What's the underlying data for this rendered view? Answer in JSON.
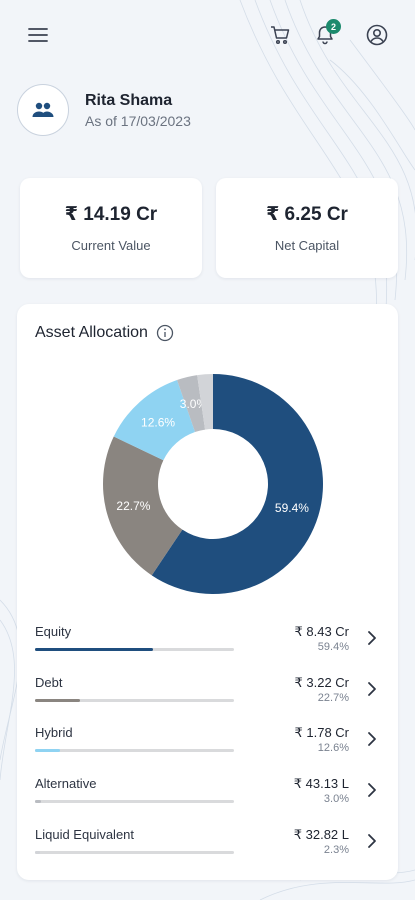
{
  "user": {
    "name": "Rita Shama",
    "as_of": "As of 17/03/2023"
  },
  "notifications": {
    "count": "2"
  },
  "summary": {
    "current_value": "₹ 14.19 Cr",
    "current_value_label": "Current Value",
    "net_capital": "₹ 6.25 Cr",
    "net_capital_label": "Net Capital"
  },
  "allocation": {
    "title": "Asset Allocation",
    "items": [
      {
        "label": "Equity",
        "amount": "₹ 8.43 Cr",
        "percent": "59.4%",
        "value": 59.4,
        "color": "#1f4e7e"
      },
      {
        "label": "Debt",
        "amount": "₹ 3.22 Cr",
        "percent": "22.7%",
        "value": 22.7,
        "color": "#8a8580"
      },
      {
        "label": "Hybrid",
        "amount": "₹ 1.78 Cr",
        "percent": "12.6%",
        "value": 12.6,
        "color": "#8fd3f2"
      },
      {
        "label": "Alternative",
        "amount": "₹ 43.13 L",
        "percent": "3.0%",
        "value": 3.0,
        "color": "#b9bcc1"
      },
      {
        "label": "Liquid Equivalent",
        "amount": "₹ 32.82 L",
        "percent": "2.3%",
        "value": 2.3,
        "color": "#d2d4d8"
      }
    ]
  },
  "chart_data": {
    "type": "pie",
    "categories": [
      "Equity",
      "Debt",
      "Hybrid",
      "Alternative",
      "Liquid Equivalent"
    ],
    "values": [
      59.4,
      22.7,
      12.6,
      3.0,
      2.3
    ],
    "data_labels": [
      "59.4%",
      "22.7%",
      "12.6%",
      "3.0%",
      ""
    ],
    "colors": [
      "#1f4e7e",
      "#8a8580",
      "#8fd3f2",
      "#b9bcc1",
      "#d2d4d8"
    ],
    "title": "Asset Allocation",
    "donut": true
  }
}
